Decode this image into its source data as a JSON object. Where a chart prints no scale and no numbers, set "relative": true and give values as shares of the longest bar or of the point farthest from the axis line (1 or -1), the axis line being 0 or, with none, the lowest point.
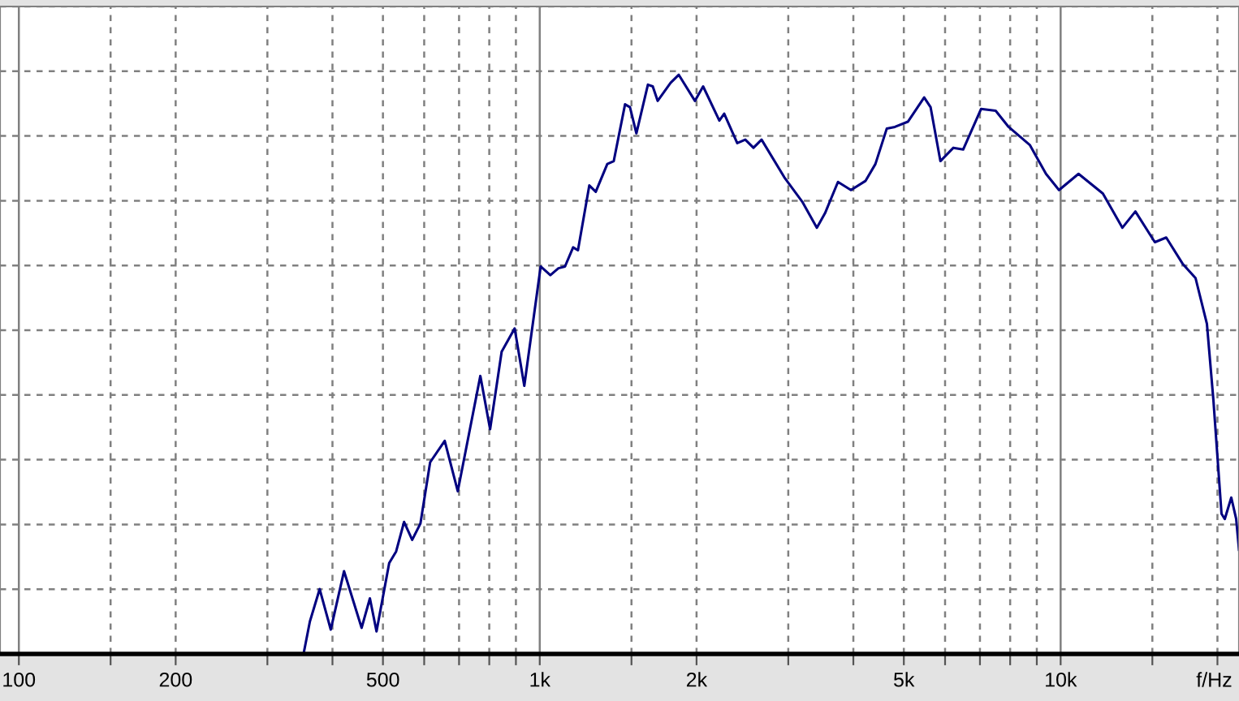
{
  "chart_data": {
    "type": "line",
    "relative": true,
    "xlabel": "f/Hz",
    "log": "x",
    "grid": true,
    "line_style": "solid",
    "marker": "none",
    "xlim": [
      92,
      22000
    ],
    "xticks": [
      100,
      {
        "value": 150,
        "label": null
      },
      200,
      {
        "value": 300,
        "label": null
      },
      {
        "value": 400,
        "label": null
      },
      500,
      {
        "value": 600,
        "label": null
      },
      {
        "value": 700,
        "label": null
      },
      {
        "value": 800,
        "label": null
      },
      {
        "value": 900,
        "label": null
      },
      {
        "value": 1000,
        "label": "1k"
      },
      {
        "value": 1500,
        "label": null
      },
      {
        "value": 2000,
        "label": "2k"
      },
      {
        "value": 3000,
        "label": null
      },
      {
        "value": 4000,
        "label": null
      },
      {
        "value": 5000,
        "label": "5k"
      },
      {
        "value": 6000,
        "label": null
      },
      {
        "value": 7000,
        "label": null
      },
      {
        "value": 8000,
        "label": null
      },
      {
        "value": 9000,
        "label": null
      },
      {
        "value": 10000,
        "label": "10k"
      },
      {
        "value": 15000,
        "label": null
      },
      {
        "value": 20000,
        "label": null
      }
    ],
    "series": [
      {
        "color": "#000080",
        "x": [
          352,
          362,
          378,
          397,
          421,
          455,
          472,
          486,
          514,
          530,
          549,
          569,
          590,
          616,
          657,
          696,
          769,
          803,
          845,
          895,
          934,
          1004,
          1048,
          1086,
          1118,
          1159,
          1184,
          1245,
          1281,
          1348,
          1387,
          1458,
          1490,
          1533,
          1613,
          1648,
          1684,
          1783,
          1849,
          1986,
          2059,
          2212,
          2260,
          2394,
          2481,
          2572,
          2666,
          2948,
          3191,
          3404,
          3529,
          3737,
          3958,
          4223,
          4410,
          4636,
          4806,
          5090,
          5470,
          5628,
          5877,
          6224,
          6499,
          7034,
          7504,
          7946,
          8724,
          9373,
          9929,
          10823,
          12052,
          13140,
          13916,
          15166,
          15948,
          17140,
          18155,
          19091,
          19648,
          20365,
          20659,
          21262,
          21727,
          22000
        ],
        "values": [
          0,
          0.056,
          0.112,
          0.042,
          0.143,
          0.045,
          0.096,
          0.039,
          0.157,
          0.177,
          0.228,
          0.197,
          0.225,
          0.331,
          0.368,
          0.281,
          0.48,
          0.388,
          0.522,
          0.562,
          0.463,
          0.669,
          0.654,
          0.666,
          0.669,
          0.702,
          0.697,
          0.809,
          0.798,
          0.846,
          0.851,
          0.949,
          0.944,
          0.899,
          0.983,
          0.98,
          0.955,
          0.986,
          1,
          0.955,
          0.98,
          0.921,
          0.933,
          0.882,
          0.888,
          0.874,
          0.888,
          0.823,
          0.781,
          0.736,
          0.761,
          0.815,
          0.801,
          0.817,
          0.846,
          0.907,
          0.91,
          0.919,
          0.961,
          0.944,
          0.851,
          0.874,
          0.871,
          0.941,
          0.938,
          0.91,
          0.879,
          0.829,
          0.801,
          0.829,
          0.795,
          0.736,
          0.764,
          0.711,
          0.719,
          0.674,
          0.649,
          0.57,
          0.438,
          0.242,
          0.233,
          0.27,
          0.233,
          0.18
        ]
      }
    ]
  }
}
